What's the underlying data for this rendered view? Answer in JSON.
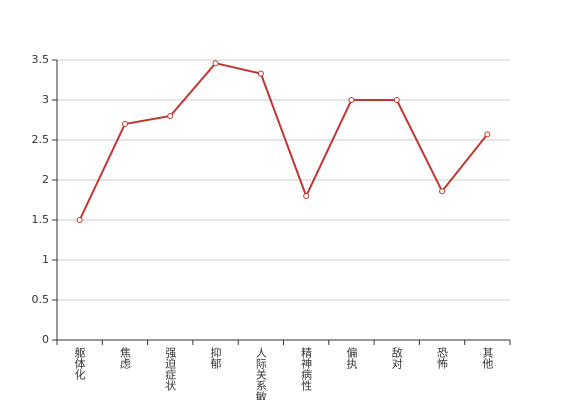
{
  "chart_data": {
    "type": "line",
    "categories": [
      "躯体化",
      "焦虑",
      "强迫症状",
      "抑郁",
      "人际关系敏感",
      "精神病性",
      "偏执",
      "敌对",
      "恐怖",
      "其他"
    ],
    "series": [
      {
        "color": "#c23531",
        "values": [
          1.5,
          2.7,
          2.8,
          3.46,
          3.33,
          1.8,
          3.0,
          3.0,
          1.86,
          2.57
        ]
      }
    ],
    "ylim": [
      0,
      3.5
    ],
    "yticks": [
      0,
      0.5,
      1,
      1.5,
      2,
      2.5,
      3,
      3.5
    ],
    "grid": true
  }
}
